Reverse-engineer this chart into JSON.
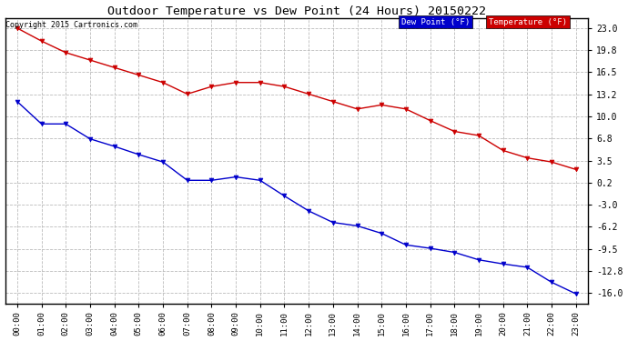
{
  "title": "Outdoor Temperature vs Dew Point (24 Hours) 20150222",
  "copyright": "Copyright 2015 Cartronics.com",
  "background_color": "#ffffff",
  "plot_background": "#ffffff",
  "grid_color": "#bbbbbb",
  "x_labels": [
    "00:00",
    "01:00",
    "02:00",
    "03:00",
    "04:00",
    "05:00",
    "06:00",
    "07:00",
    "08:00",
    "09:00",
    "10:00",
    "11:00",
    "12:00",
    "13:00",
    "14:00",
    "15:00",
    "16:00",
    "17:00",
    "18:00",
    "19:00",
    "20:00",
    "21:00",
    "22:00",
    "23:00"
  ],
  "temperature_color": "#cc0000",
  "dewpoint_color": "#0000cc",
  "temperature_values": [
    23.0,
    21.1,
    19.4,
    18.3,
    17.2,
    16.1,
    15.0,
    13.3,
    14.4,
    15.0,
    15.0,
    14.4,
    13.3,
    12.2,
    11.1,
    11.7,
    11.1,
    9.4,
    7.8,
    7.2,
    5.0,
    3.9,
    3.3,
    2.2
  ],
  "dewpoint_values": [
    12.2,
    8.9,
    8.9,
    6.7,
    5.6,
    4.4,
    3.3,
    0.6,
    0.6,
    1.1,
    0.6,
    -1.7,
    -3.9,
    -5.6,
    -6.1,
    -7.2,
    -8.9,
    -9.4,
    -10.0,
    -11.1,
    -11.7,
    -12.2,
    -14.4,
    -16.1
  ],
  "ylim_min": -17.5,
  "ylim_max": 24.5,
  "yticks": [
    -16.0,
    -12.8,
    -9.5,
    -6.2,
    -3.0,
    0.2,
    3.5,
    6.8,
    10.0,
    13.2,
    16.5,
    19.8,
    23.0
  ],
  "legend_dew_label": "Dew Point (°F)",
  "legend_temp_label": "Temperature (°F)"
}
